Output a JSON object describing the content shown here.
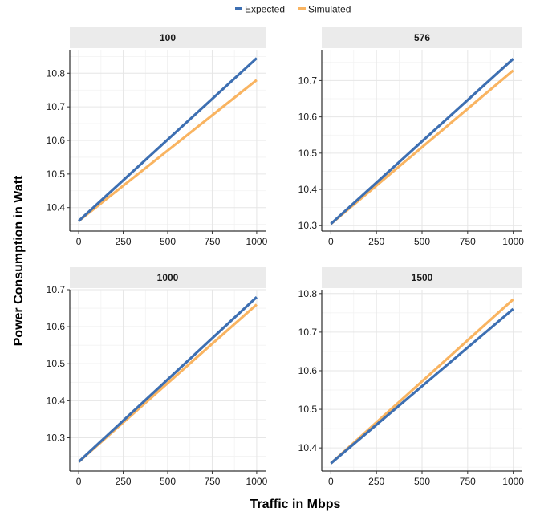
{
  "chart_data": {
    "type": "line",
    "xlabel": "Traffic in Mbps",
    "ylabel": "Power Consumption in Watt",
    "legend": {
      "position": "top",
      "entries": [
        {
          "label": "Expected",
          "color": "#3d6fb2"
        },
        {
          "label": "Simulated",
          "color": "#f9b461"
        }
      ]
    },
    "grid": true,
    "x_ticks": [
      0,
      250,
      500,
      750,
      1000
    ],
    "panels": [
      {
        "title": "100",
        "xlim": [
          -50,
          1050
        ],
        "ylim": [
          10.33,
          10.87
        ],
        "y_ticks": [
          10.4,
          10.5,
          10.6,
          10.7,
          10.8
        ],
        "y_tick_labels": [
          "10.4",
          "10.5",
          "10.6",
          "10.7",
          "10.8"
        ],
        "series": [
          {
            "name": "Expected",
            "x": [
              0,
              1000
            ],
            "y": [
              10.36,
              10.845
            ]
          },
          {
            "name": "Simulated",
            "x": [
              0,
              1000
            ],
            "y": [
              10.36,
              10.78
            ]
          }
        ]
      },
      {
        "title": "576",
        "xlim": [
          -50,
          1050
        ],
        "ylim": [
          10.285,
          10.785
        ],
        "y_ticks": [
          10.3,
          10.4,
          10.5,
          10.6,
          10.7
        ],
        "y_tick_labels": [
          "10.3",
          "10.4",
          "10.5",
          "10.6",
          "10.7"
        ],
        "series": [
          {
            "name": "Expected",
            "x": [
              0,
              1000
            ],
            "y": [
              10.305,
              10.76
            ]
          },
          {
            "name": "Simulated",
            "x": [
              0,
              1000
            ],
            "y": [
              10.305,
              10.728
            ]
          }
        ]
      },
      {
        "title": "1000",
        "xlim": [
          -50,
          1050
        ],
        "ylim": [
          10.21,
          10.7
        ],
        "y_ticks": [
          10.3,
          10.4,
          10.5,
          10.6,
          10.7
        ],
        "y_tick_labels": [
          "10.3",
          "10.4",
          "10.5",
          "10.6",
          "10.7"
        ],
        "series": [
          {
            "name": "Expected",
            "x": [
              0,
              1000
            ],
            "y": [
              10.235,
              10.68
            ]
          },
          {
            "name": "Simulated",
            "x": [
              0,
              1000
            ],
            "y": [
              10.235,
              10.66
            ]
          }
        ]
      },
      {
        "title": "1500",
        "xlim": [
          -50,
          1050
        ],
        "ylim": [
          10.34,
          10.81
        ],
        "y_ticks": [
          10.4,
          10.5,
          10.6,
          10.7,
          10.8
        ],
        "y_tick_labels": [
          "10.4",
          "10.5",
          "10.6",
          "10.7",
          "10.8"
        ],
        "series": [
          {
            "name": "Expected",
            "x": [
              0,
              1000
            ],
            "y": [
              10.36,
              10.76
            ]
          },
          {
            "name": "Simulated",
            "x": [
              0,
              1000
            ],
            "y": [
              10.36,
              10.785
            ]
          }
        ]
      }
    ]
  }
}
